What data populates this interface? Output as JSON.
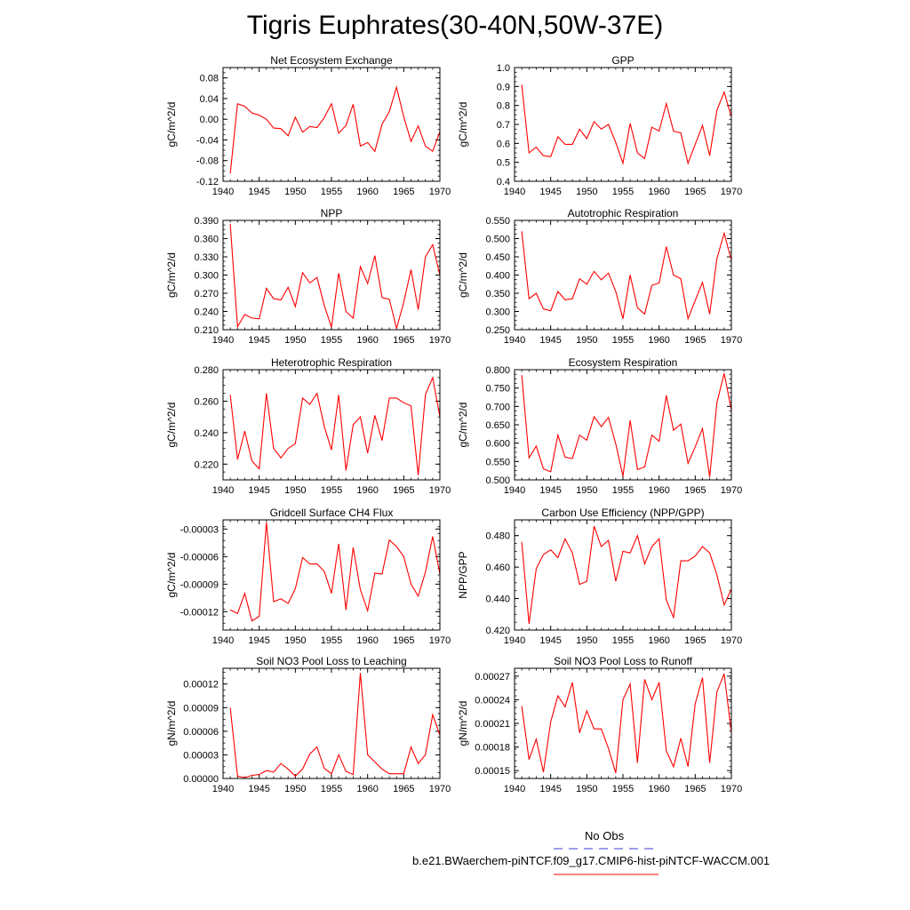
{
  "figure": {
    "title": "Tigris Euphrates(30-40N,50W-37E)",
    "legend": [
      {
        "label": "No Obs",
        "color": "#3b3bd6",
        "style": "dashed"
      },
      {
        "label": "b.e21.BWaerchem-piNTCF.f09_g17.CMIP6-hist-piNTCF-WACCM.001",
        "color": "#ff0000",
        "style": "solid"
      }
    ],
    "line_color": "#ff0000"
  },
  "chart_data": [
    {
      "type": "line",
      "title": "Net Ecosystem Exchange",
      "ylabel": "gC/m^2/d",
      "xlim": [
        1940,
        1970
      ],
      "ylim": [
        -0.12,
        0.1
      ],
      "xticks": [
        1940,
        1945,
        1950,
        1955,
        1960,
        1965,
        1970
      ],
      "yticks": [
        -0.12,
        -0.08,
        -0.04,
        0.0,
        0.04,
        0.08
      ],
      "ytick_labels": [
        "-0.12",
        "-0.08",
        "-0.04",
        "0.00",
        "0.04",
        "0.08"
      ],
      "x": [
        1941,
        1942,
        1943,
        1944,
        1945,
        1946,
        1947,
        1948,
        1949,
        1950,
        1951,
        1952,
        1953,
        1954,
        1955,
        1956,
        1957,
        1958,
        1959,
        1960,
        1961,
        1962,
        1963,
        1964,
        1965,
        1966,
        1967,
        1968,
        1969,
        1970
      ],
      "series": [
        {
          "values": [
            -0.105,
            0.03,
            0.025,
            0.012,
            0.008,
            0.0,
            -0.017,
            -0.018,
            -0.032,
            0.004,
            -0.025,
            -0.014,
            -0.016,
            0.003,
            0.03,
            -0.027,
            -0.012,
            0.029,
            -0.052,
            -0.045,
            -0.062,
            -0.01,
            0.015,
            0.062,
            0.005,
            -0.043,
            -0.013,
            -0.052,
            -0.062,
            -0.024
          ]
        }
      ]
    },
    {
      "type": "line",
      "title": "GPP",
      "ylabel": "gC/m^2/d",
      "xlim": [
        1940,
        1970
      ],
      "ylim": [
        0.4,
        1.0
      ],
      "xticks": [
        1940,
        1945,
        1950,
        1955,
        1960,
        1965,
        1970
      ],
      "yticks": [
        0.4,
        0.5,
        0.6,
        0.7,
        0.8,
        0.9,
        1.0
      ],
      "ytick_labels": [
        "0.4",
        "0.5",
        "0.6",
        "0.7",
        "0.8",
        "0.9",
        "1.0"
      ],
      "x": [
        1941,
        1942,
        1943,
        1944,
        1945,
        1946,
        1947,
        1948,
        1949,
        1950,
        1951,
        1952,
        1953,
        1954,
        1955,
        1956,
        1957,
        1958,
        1959,
        1960,
        1961,
        1962,
        1963,
        1964,
        1965,
        1966,
        1967,
        1968,
        1969,
        1970
      ],
      "series": [
        {
          "values": [
            0.91,
            0.55,
            0.58,
            0.535,
            0.53,
            0.635,
            0.595,
            0.595,
            0.675,
            0.625,
            0.715,
            0.675,
            0.7,
            0.605,
            0.495,
            0.705,
            0.55,
            0.52,
            0.685,
            0.665,
            0.81,
            0.665,
            0.655,
            0.495,
            0.595,
            0.695,
            0.535,
            0.775,
            0.87,
            0.74
          ]
        }
      ]
    },
    {
      "type": "line",
      "title": "NPP",
      "ylabel": "gC/m^2/d",
      "xlim": [
        1940,
        1970
      ],
      "ylim": [
        0.21,
        0.39
      ],
      "xticks": [
        1940,
        1945,
        1950,
        1955,
        1960,
        1965,
        1970
      ],
      "yticks": [
        0.21,
        0.24,
        0.27,
        0.3,
        0.33,
        0.36,
        0.39
      ],
      "ytick_labels": [
        "0.210",
        "0.240",
        "0.270",
        "0.300",
        "0.330",
        "0.360",
        "0.390"
      ],
      "x": [
        1941,
        1942,
        1943,
        1944,
        1945,
        1946,
        1947,
        1948,
        1949,
        1950,
        1951,
        1952,
        1953,
        1954,
        1955,
        1956,
        1957,
        1958,
        1959,
        1960,
        1961,
        1962,
        1963,
        1964,
        1965,
        1966,
        1967,
        1968,
        1969,
        1970
      ],
      "series": [
        {
          "values": [
            0.384,
            0.215,
            0.235,
            0.229,
            0.228,
            0.278,
            0.261,
            0.259,
            0.28,
            0.248,
            0.304,
            0.287,
            0.296,
            0.25,
            0.214,
            0.303,
            0.24,
            0.229,
            0.314,
            0.286,
            0.332,
            0.263,
            0.26,
            0.212,
            0.255,
            0.309,
            0.243,
            0.33,
            0.35,
            0.3
          ]
        }
      ]
    },
    {
      "type": "line",
      "title": "Autotrophic Respiration",
      "ylabel": "gC/m^2/d",
      "xlim": [
        1940,
        1970
      ],
      "ylim": [
        0.25,
        0.55
      ],
      "xticks": [
        1940,
        1945,
        1950,
        1955,
        1960,
        1965,
        1970
      ],
      "yticks": [
        0.25,
        0.3,
        0.35,
        0.4,
        0.45,
        0.5,
        0.55
      ],
      "ytick_labels": [
        "0.250",
        "0.300",
        "0.350",
        "0.400",
        "0.450",
        "0.500",
        "0.550"
      ],
      "x": [
        1941,
        1942,
        1943,
        1944,
        1945,
        1946,
        1947,
        1948,
        1949,
        1950,
        1951,
        1952,
        1953,
        1954,
        1955,
        1956,
        1957,
        1958,
        1959,
        1960,
        1961,
        1962,
        1963,
        1964,
        1965,
        1966,
        1967,
        1968,
        1969,
        1970
      ],
      "series": [
        {
          "values": [
            0.52,
            0.335,
            0.35,
            0.307,
            0.302,
            0.355,
            0.332,
            0.335,
            0.39,
            0.375,
            0.41,
            0.387,
            0.405,
            0.355,
            0.28,
            0.4,
            0.31,
            0.293,
            0.372,
            0.378,
            0.478,
            0.4,
            0.39,
            0.28,
            0.33,
            0.38,
            0.293,
            0.445,
            0.515,
            0.44
          ]
        }
      ]
    },
    {
      "type": "line",
      "title": "Heterotrophic Respiration",
      "ylabel": "gC/m^2/d",
      "xlim": [
        1940,
        1970
      ],
      "ylim": [
        0.21,
        0.28
      ],
      "xticks": [
        1940,
        1945,
        1950,
        1955,
        1960,
        1965,
        1970
      ],
      "yticks": [
        0.22,
        0.24,
        0.26,
        0.28
      ],
      "ytick_labels": [
        "0.220",
        "0.240",
        "0.260",
        "0.280"
      ],
      "x": [
        1941,
        1942,
        1943,
        1944,
        1945,
        1946,
        1947,
        1948,
        1949,
        1950,
        1951,
        1952,
        1953,
        1954,
        1955,
        1956,
        1957,
        1958,
        1959,
        1960,
        1961,
        1962,
        1963,
        1964,
        1965,
        1966,
        1967,
        1968,
        1969,
        1970
      ],
      "series": [
        {
          "values": [
            0.264,
            0.223,
            0.241,
            0.222,
            0.217,
            0.265,
            0.23,
            0.224,
            0.23,
            0.233,
            0.262,
            0.258,
            0.265,
            0.244,
            0.229,
            0.264,
            0.216,
            0.245,
            0.25,
            0.227,
            0.251,
            0.235,
            0.262,
            0.262,
            0.259,
            0.257,
            0.213,
            0.264,
            0.275,
            0.25
          ]
        }
      ]
    },
    {
      "type": "line",
      "title": "Ecosystem Respiration",
      "ylabel": "gC/m^2/d",
      "xlim": [
        1940,
        1970
      ],
      "ylim": [
        0.5,
        0.8
      ],
      "xticks": [
        1940,
        1945,
        1950,
        1955,
        1960,
        1965,
        1970
      ],
      "yticks": [
        0.5,
        0.55,
        0.6,
        0.65,
        0.7,
        0.75,
        0.8
      ],
      "ytick_labels": [
        "0.500",
        "0.550",
        "0.600",
        "0.650",
        "0.700",
        "0.750",
        "0.800"
      ],
      "x": [
        1941,
        1942,
        1943,
        1944,
        1945,
        1946,
        1947,
        1948,
        1949,
        1950,
        1951,
        1952,
        1953,
        1954,
        1955,
        1956,
        1957,
        1958,
        1959,
        1960,
        1961,
        1962,
        1963,
        1964,
        1965,
        1966,
        1967,
        1968,
        1969,
        1970
      ],
      "series": [
        {
          "values": [
            0.785,
            0.56,
            0.592,
            0.53,
            0.522,
            0.622,
            0.562,
            0.558,
            0.622,
            0.608,
            0.672,
            0.645,
            0.67,
            0.598,
            0.51,
            0.662,
            0.528,
            0.535,
            0.622,
            0.605,
            0.73,
            0.635,
            0.652,
            0.545,
            0.59,
            0.64,
            0.508,
            0.71,
            0.79,
            0.69
          ]
        }
      ]
    },
    {
      "type": "line",
      "title": "Gridcell Surface CH4 Flux",
      "ylabel": "gC/m^2/d",
      "xlim": [
        1940,
        1970
      ],
      "ylim": [
        -0.00014,
        -2e-05
      ],
      "xticks": [
        1940,
        1945,
        1950,
        1955,
        1960,
        1965,
        1970
      ],
      "yticks": [
        -0.00012,
        -9e-05,
        -6e-05,
        -3e-05
      ],
      "ytick_labels": [
        "-0.00012",
        "-0.00009",
        "-0.00006",
        "-0.00003"
      ],
      "x": [
        1941,
        1942,
        1943,
        1944,
        1945,
        1946,
        1947,
        1948,
        1949,
        1950,
        1951,
        1952,
        1953,
        1954,
        1955,
        1956,
        1957,
        1958,
        1959,
        1960,
        1961,
        1962,
        1963,
        1964,
        1965,
        1966,
        1967,
        1968,
        1969,
        1970
      ],
      "series": [
        {
          "values": [
            -0.000118,
            -0.000122,
            -0.0001,
            -0.00013,
            -0.000125,
            -2.3e-05,
            -0.000109,
            -0.000106,
            -0.000111,
            -9.5e-05,
            -6.1e-05,
            -6.8e-05,
            -6.8e-05,
            -7.6e-05,
            -0.0001,
            -4.6e-05,
            -0.000118,
            -5e-05,
            -9.6e-05,
            -0.000119,
            -7.8e-05,
            -7.9e-05,
            -4.2e-05,
            -4.9e-05,
            -6e-05,
            -9e-05,
            -0.000103,
            -7.7e-05,
            -3.8e-05,
            -7.9e-05
          ]
        }
      ]
    },
    {
      "type": "line",
      "title": "Carbon Use Efficiency (NPP/GPP)",
      "ylabel": "NPP/GPP",
      "xlim": [
        1940,
        1970
      ],
      "ylim": [
        0.42,
        0.49
      ],
      "xticks": [
        1940,
        1945,
        1950,
        1955,
        1960,
        1965,
        1970
      ],
      "yticks": [
        0.42,
        0.44,
        0.46,
        0.48
      ],
      "ytick_labels": [
        "0.420",
        "0.440",
        "0.460",
        "0.480"
      ],
      "x": [
        1941,
        1942,
        1943,
        1944,
        1945,
        1946,
        1947,
        1948,
        1949,
        1950,
        1951,
        1952,
        1953,
        1954,
        1955,
        1956,
        1957,
        1958,
        1959,
        1960,
        1961,
        1962,
        1963,
        1964,
        1965,
        1966,
        1967,
        1968,
        1969,
        1970
      ],
      "series": [
        {
          "values": [
            0.476,
            0.424,
            0.459,
            0.468,
            0.471,
            0.466,
            0.478,
            0.469,
            0.449,
            0.451,
            0.486,
            0.473,
            0.477,
            0.451,
            0.47,
            0.469,
            0.48,
            0.462,
            0.473,
            0.478,
            0.439,
            0.428,
            0.464,
            0.464,
            0.467,
            0.473,
            0.469,
            0.455,
            0.436,
            0.446
          ]
        }
      ]
    },
    {
      "type": "line",
      "title": "Soil NO3 Pool Loss to Leaching",
      "ylabel": "gN/m^2/d",
      "xlim": [
        1940,
        1970
      ],
      "ylim": [
        0.0,
        0.00014
      ],
      "xticks": [
        1940,
        1945,
        1950,
        1955,
        1960,
        1965,
        1970
      ],
      "yticks": [
        0.0,
        3e-05,
        6e-05,
        9e-05,
        0.00012
      ],
      "ytick_labels": [
        "0.00000",
        "0.00003",
        "0.00006",
        "0.00009",
        "0.00012"
      ],
      "x": [
        1941,
        1942,
        1943,
        1944,
        1945,
        1946,
        1947,
        1948,
        1949,
        1950,
        1951,
        1952,
        1953,
        1954,
        1955,
        1956,
        1957,
        1958,
        1959,
        1960,
        1961,
        1962,
        1963,
        1964,
        1965,
        1966,
        1967,
        1968,
        1969,
        1970
      ],
      "series": [
        {
          "values": [
            9e-05,
            3e-06,
            1e-06,
            4e-06,
            5e-06,
            1e-05,
            8e-06,
            1.9e-05,
            1.2e-05,
            3e-06,
            1.2e-05,
            3.1e-05,
            4e-05,
            1.3e-05,
            6e-06,
            3e-05,
            9e-06,
            5e-06,
            0.000134,
            3e-05,
            2.1e-05,
            1.2e-05,
            6e-06,
            6e-06,
            6e-06,
            4e-05,
            1.9e-05,
            3e-05,
            8.1e-05,
            5.5e-05
          ]
        }
      ]
    },
    {
      "type": "line",
      "title": "Soil NO3 Pool Loss to Runoff",
      "ylabel": "gN/m^2/d",
      "xlim": [
        1940,
        1970
      ],
      "ylim": [
        0.00014,
        0.00028
      ],
      "xticks": [
        1940,
        1945,
        1950,
        1955,
        1960,
        1965,
        1970
      ],
      "yticks": [
        0.00015,
        0.00018,
        0.00021,
        0.00024,
        0.00027
      ],
      "ytick_labels": [
        "0.00015",
        "0.00018",
        "0.00021",
        "0.00024",
        "0.00027"
      ],
      "x": [
        1941,
        1942,
        1943,
        1944,
        1945,
        1946,
        1947,
        1948,
        1949,
        1950,
        1951,
        1952,
        1953,
        1954,
        1955,
        1956,
        1957,
        1958,
        1959,
        1960,
        1961,
        1962,
        1963,
        1964,
        1965,
        1966,
        1967,
        1968,
        1969,
        1970
      ],
      "series": [
        {
          "values": [
            0.000232,
            0.000164,
            0.00019,
            0.000148,
            0.000212,
            0.000245,
            0.000231,
            0.000262,
            0.000198,
            0.000226,
            0.000203,
            0.000203,
            0.000178,
            0.000147,
            0.00024,
            0.00026,
            0.00016,
            0.000266,
            0.00024,
            0.000262,
            0.000175,
            0.000155,
            0.000191,
            0.000155,
            0.000235,
            0.000268,
            0.00016,
            0.00025,
            0.000273,
            0.000198
          ]
        }
      ]
    }
  ]
}
